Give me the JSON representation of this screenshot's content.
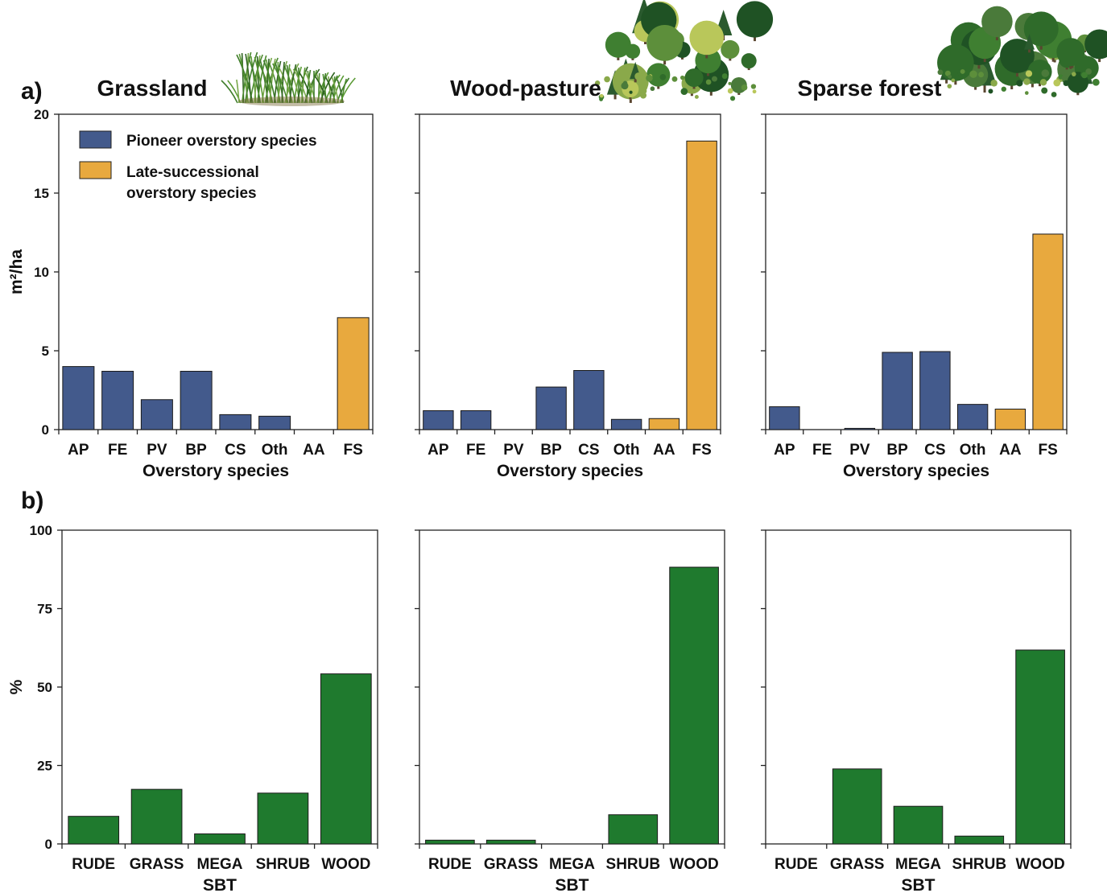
{
  "panel_labels": {
    "a": "a)",
    "b": "b)"
  },
  "legend": {
    "items": [
      {
        "label_lines": [
          "Pioneer overstory species"
        ],
        "color": "#435a8c"
      },
      {
        "label_lines": [
          "Late-successional",
          "overstory species"
        ],
        "color": "#e8a93e"
      }
    ]
  },
  "colors": {
    "pioneer": "#435a8c",
    "late": "#e8a93e",
    "sbt": "#1f7a2e"
  },
  "illustrations": [
    "grass-illustration",
    "tree-cluster-illustration",
    "tree-cluster-illustration"
  ],
  "chart_data": [
    {
      "type": "bar",
      "row": "a",
      "column_title": "Grassland",
      "ylabel": "m²/ha",
      "xlabel": "Overstory species",
      "ylim": [
        0,
        20
      ],
      "yticks": [
        0,
        5,
        10,
        15,
        20
      ],
      "categories": [
        "AP",
        "FE",
        "PV",
        "BP",
        "CS",
        "Oth",
        "AA",
        "FS"
      ],
      "values": [
        4.0,
        3.7,
        1.9,
        3.7,
        0.95,
        0.85,
        0,
        7.1
      ],
      "groups": [
        "pioneer",
        "pioneer",
        "pioneer",
        "pioneer",
        "pioneer",
        "pioneer",
        "late",
        "late"
      ],
      "legend": "top-left"
    },
    {
      "type": "bar",
      "row": "a",
      "column_title": "Wood-pasture",
      "ylabel": "",
      "xlabel": "Overstory species",
      "ylim": [
        0,
        20
      ],
      "yticks": [
        0,
        5,
        10,
        15,
        20
      ],
      "categories": [
        "AP",
        "FE",
        "PV",
        "BP",
        "CS",
        "Oth",
        "AA",
        "FS"
      ],
      "values": [
        1.2,
        1.2,
        0,
        2.7,
        3.75,
        0.65,
        0.7,
        18.3
      ],
      "groups": [
        "pioneer",
        "pioneer",
        "pioneer",
        "pioneer",
        "pioneer",
        "pioneer",
        "late",
        "late"
      ]
    },
    {
      "type": "bar",
      "row": "a",
      "column_title": "Sparse forest",
      "ylabel": "",
      "xlabel": "Overstory species",
      "ylim": [
        0,
        20
      ],
      "yticks": [
        0,
        5,
        10,
        15,
        20
      ],
      "categories": [
        "AP",
        "FE",
        "PV",
        "BP",
        "CS",
        "Oth",
        "AA",
        "FS"
      ],
      "values": [
        1.45,
        0,
        0.08,
        4.9,
        4.95,
        1.6,
        1.3,
        12.4
      ],
      "groups": [
        "pioneer",
        "pioneer",
        "pioneer",
        "pioneer",
        "pioneer",
        "pioneer",
        "late",
        "late"
      ]
    },
    {
      "type": "bar",
      "row": "b",
      "column_title": "",
      "ylabel": "%",
      "xlabel": "SBT",
      "ylim": [
        0,
        100
      ],
      "yticks": [
        0,
        25,
        50,
        75,
        100
      ],
      "categories": [
        "RUDE",
        "GRASS",
        "MEGA",
        "SHRUB",
        "WOOD"
      ],
      "values": [
        8.8,
        17.4,
        3.2,
        16.2,
        54.2
      ],
      "groups": [
        "sbt",
        "sbt",
        "sbt",
        "sbt",
        "sbt"
      ]
    },
    {
      "type": "bar",
      "row": "b",
      "column_title": "",
      "ylabel": "",
      "xlabel": "SBT",
      "ylim": [
        0,
        100
      ],
      "yticks": [
        0,
        25,
        50,
        75,
        100
      ],
      "categories": [
        "RUDE",
        "GRASS",
        "MEGA",
        "SHRUB",
        "WOOD"
      ],
      "values": [
        1.2,
        1.2,
        0,
        9.3,
        88.2
      ],
      "groups": [
        "sbt",
        "sbt",
        "sbt",
        "sbt",
        "sbt"
      ]
    },
    {
      "type": "bar",
      "row": "b",
      "column_title": "",
      "ylabel": "",
      "xlabel": "SBT",
      "ylim": [
        0,
        100
      ],
      "yticks": [
        0,
        25,
        50,
        75,
        100
      ],
      "categories": [
        "RUDE",
        "GRASS",
        "MEGA",
        "SHRUB",
        "WOOD"
      ],
      "values": [
        0,
        23.9,
        12.0,
        2.5,
        61.8
      ],
      "groups": [
        "sbt",
        "sbt",
        "sbt",
        "sbt",
        "sbt"
      ]
    }
  ]
}
